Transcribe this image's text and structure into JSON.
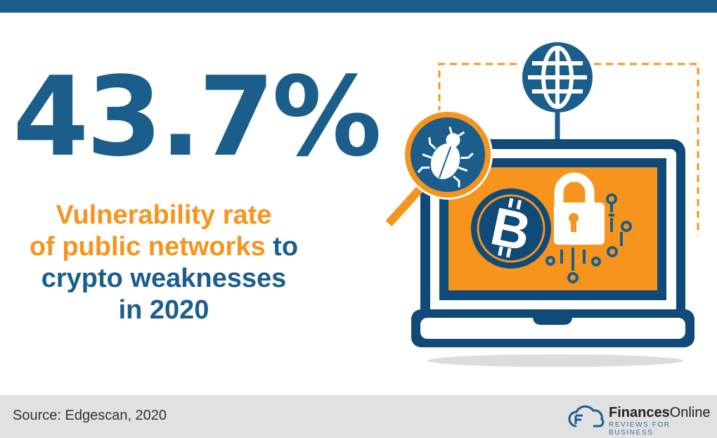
{
  "stat": {
    "value": "43.7%"
  },
  "description": {
    "line1": "Vulnerability rate",
    "line2_highlight": "of public networks",
    "line2_rest": " to",
    "line3": "crypto weaknesses",
    "line4": "in 2020"
  },
  "footer": {
    "source": "Source: Edgescan, 2020",
    "logo_bold": "Finances",
    "logo_rest": "Online",
    "logo_tagline": "REVIEWS FOR BUSINESS"
  },
  "colors": {
    "primary": "#1b5e8c",
    "dark": "#0f4a78",
    "accent": "#f7941d",
    "footer": "#e1e1e3"
  },
  "icons": [
    "globe-icon",
    "bug-icon",
    "magnifier-icon",
    "laptop-icon",
    "bitcoin-icon",
    "padlock-icon",
    "circuit-icon"
  ]
}
